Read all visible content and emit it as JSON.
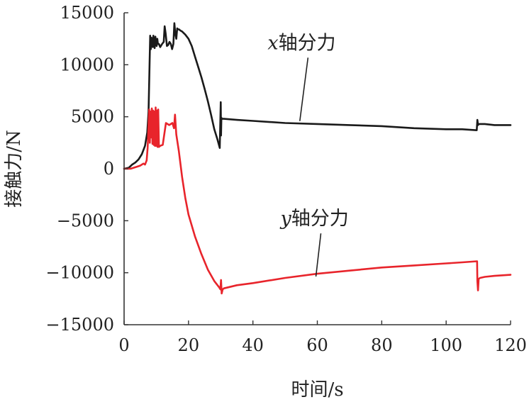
{
  "chart_data": {
    "type": "line",
    "xlabel": "时间/s",
    "ylabel": "接触力/N",
    "xlim": [
      0,
      120
    ],
    "ylim": [
      -15000,
      15000
    ],
    "xticks": [
      0,
      20,
      40,
      60,
      80,
      100,
      120
    ],
    "yticks": [
      -15000,
      -10000,
      -5000,
      0,
      5000,
      10000,
      15000
    ],
    "ytick_labels": [
      "−15000",
      "−10000",
      "−5000",
      "0",
      "5000",
      "10000",
      "15000"
    ],
    "grid": false,
    "series": [
      {
        "name_var": "x",
        "name_rest": "轴分力",
        "color": "#1a1a1a",
        "x": [
          0,
          1.5,
          2.5,
          3.5,
          4.5,
          5.5,
          6.5,
          7.2,
          7.6,
          7.9,
          8.1,
          8.3,
          8.5,
          8.7,
          8.9,
          9.1,
          9.3,
          9.5,
          9.7,
          9.9,
          10.1,
          10.3,
          10.5,
          10.8,
          11.2,
          11.8,
          12.3,
          12.6,
          12.9,
          13.3,
          13.7,
          14.1,
          14.5,
          14.9,
          15.3,
          15.6,
          15.9,
          16.2,
          16.5,
          16.8,
          17.1,
          17.4,
          18,
          19,
          20,
          21,
          22,
          23,
          24,
          25,
          26,
          27,
          28,
          29,
          29.7,
          30.0,
          30.1,
          30.2,
          30.3,
          31,
          35,
          40,
          50,
          60,
          70,
          80,
          90,
          100,
          105,
          109.5,
          109.7,
          109.9,
          110.1,
          110.6,
          112,
          115,
          120
        ],
        "y": [
          0,
          100,
          400,
          600,
          900,
          1400,
          2200,
          3500,
          5500,
          10000,
          12800,
          11500,
          12600,
          12000,
          11700,
          12800,
          11900,
          11600,
          12700,
          12000,
          11800,
          12500,
          12000,
          12000,
          11700,
          12000,
          12200,
          13700,
          13000,
          11800,
          11900,
          12200,
          12000,
          11500,
          12000,
          14000,
          13000,
          12500,
          13500,
          13400,
          13400,
          13300,
          13200,
          12900,
          12500,
          11800,
          10800,
          9800,
          8800,
          7700,
          6500,
          5200,
          3800,
          2800,
          2000,
          6400,
          3200,
          4900,
          4800,
          4800,
          4700,
          4600,
          4400,
          4300,
          4200,
          4100,
          3900,
          3800,
          3800,
          3700,
          4700,
          4200,
          4300,
          4300,
          4300,
          4200,
          4200
        ]
      },
      {
        "name_var": "y",
        "name_rest": "轴分力",
        "color": "#e8242b",
        "x": [
          0,
          2,
          4,
          5,
          6,
          6.5,
          7,
          7.3,
          7.6,
          7.8,
          8.0,
          8.2,
          8.4,
          8.6,
          8.8,
          9.0,
          9.2,
          9.4,
          9.6,
          9.8,
          10.0,
          10.2,
          10.4,
          10.6,
          10.8,
          11.2,
          12,
          13,
          14,
          15,
          15.5,
          15.8,
          16.2,
          17,
          18,
          19,
          20,
          22,
          24,
          26,
          28,
          29.5,
          29.9,
          30.1,
          30.3,
          30.6,
          31,
          35,
          40,
          50,
          60,
          70,
          80,
          90,
          100,
          105,
          109.6,
          109.7,
          109.9,
          110.1,
          110.5,
          112,
          115,
          120
        ],
        "y": [
          0,
          0,
          200,
          300,
          500,
          400,
          800,
          2000,
          4200,
          5700,
          2500,
          5500,
          3000,
          5800,
          2400,
          5600,
          2300,
          5500,
          2200,
          5900,
          2200,
          5600,
          2100,
          5700,
          2100,
          2200,
          2300,
          4400,
          4200,
          4400,
          3900,
          5200,
          3300,
          1700,
          -800,
          -2800,
          -4400,
          -6500,
          -8200,
          -9700,
          -10800,
          -11400,
          -11600,
          -10700,
          -12000,
          -11600,
          -11500,
          -11200,
          -11000,
          -10500,
          -10100,
          -9800,
          -9500,
          -9300,
          -9100,
          -9000,
          -8900,
          -10800,
          -11700,
          -10600,
          -10500,
          -10400,
          -10300,
          -10200
        ]
      }
    ],
    "annotations": [
      {
        "series": 0,
        "text_var": "x",
        "text_rest": "轴分力",
        "at": [
          56,
          11500
        ],
        "points_to": [
          55,
          4450
        ]
      },
      {
        "series": 1,
        "text_var": "y",
        "text_rest": "轴分力",
        "at": [
          60,
          -5400
        ],
        "points_to": [
          60,
          -10500
        ]
      }
    ]
  }
}
